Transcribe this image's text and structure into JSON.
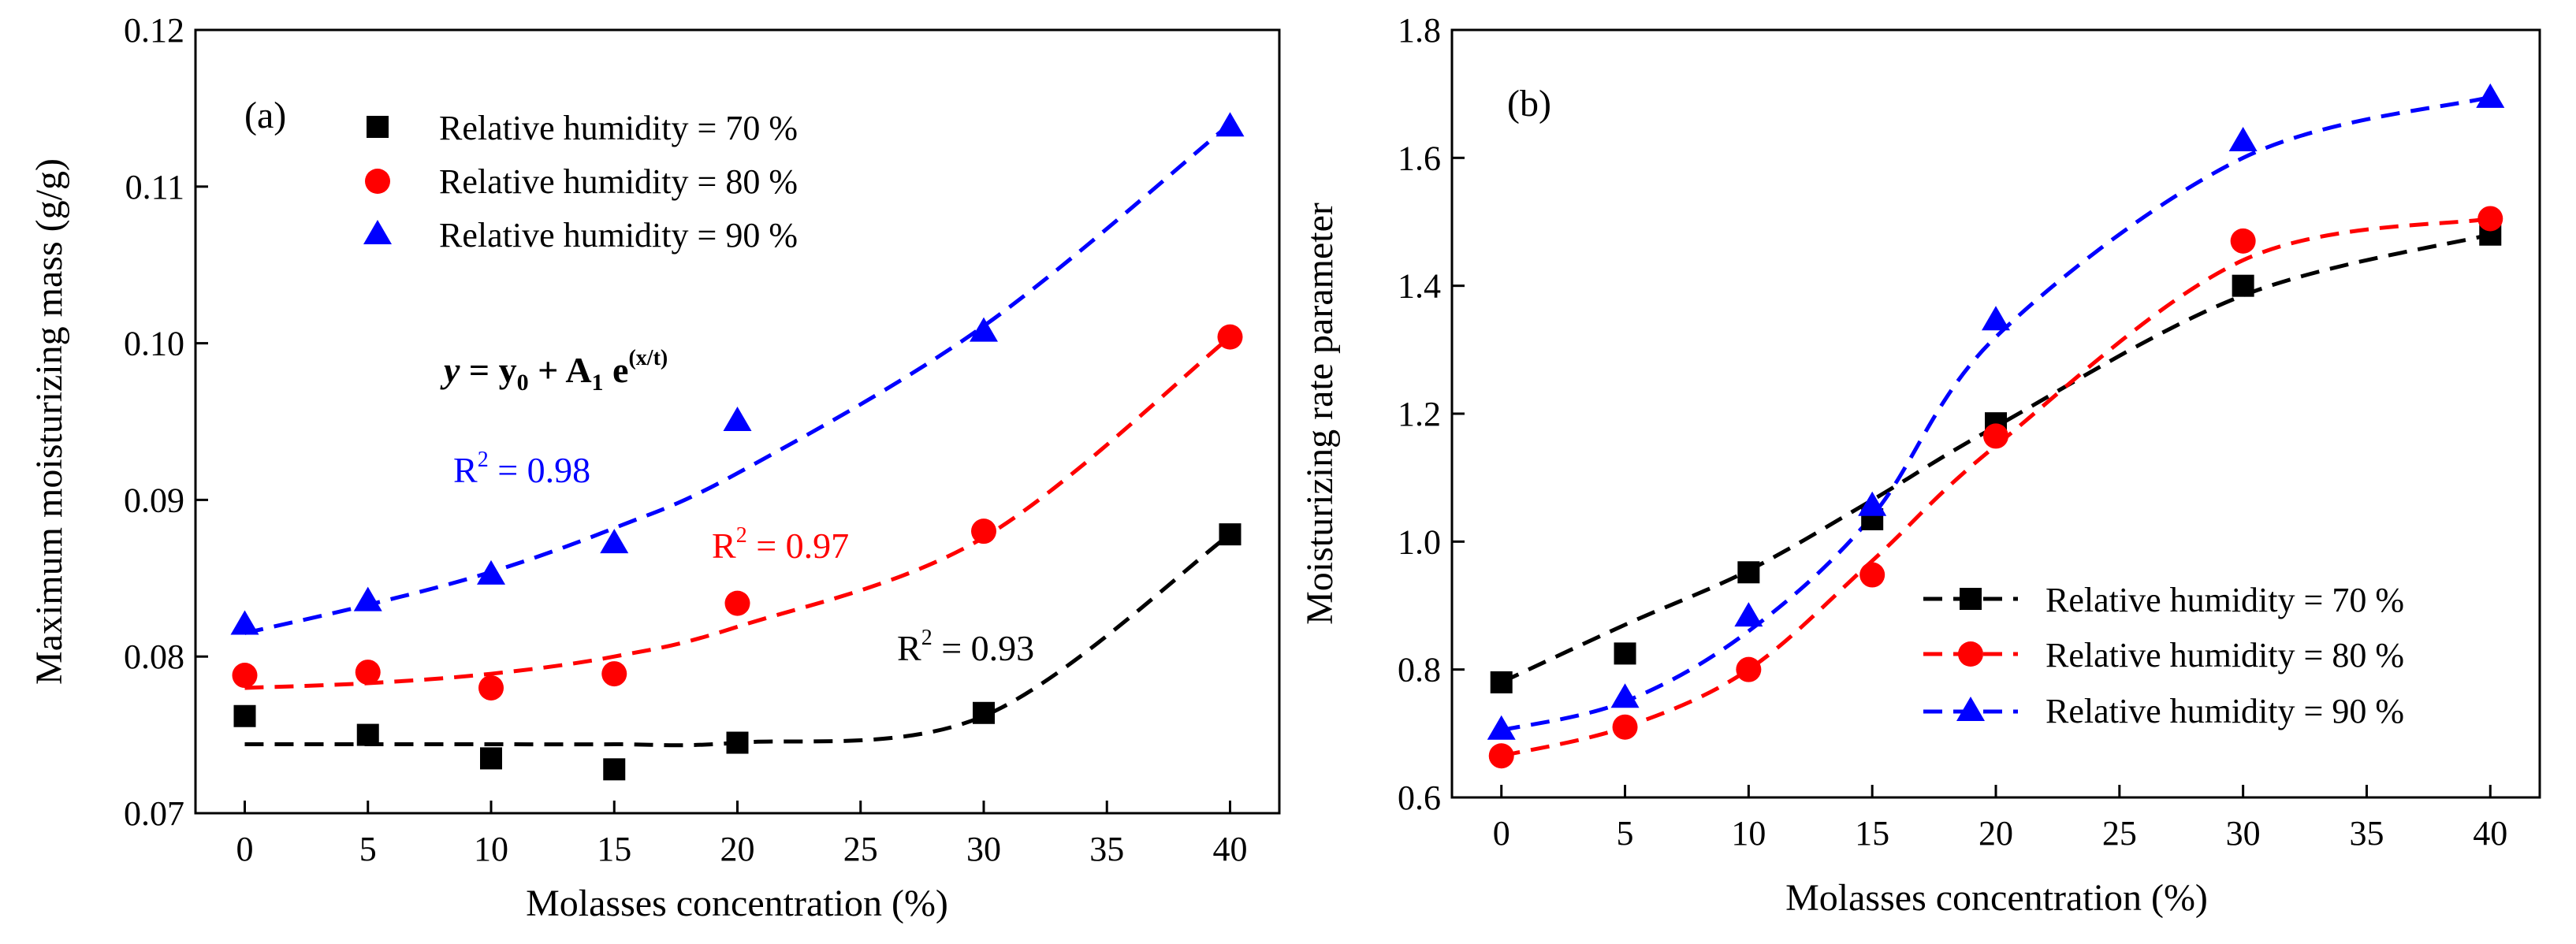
{
  "chart_data": [
    {
      "type": "scatter",
      "panel_label": "(a)",
      "xlabel": "Molasses concentration (%)",
      "ylabel": "Maximum moisturizing mass (g/g)",
      "xlim": [
        -2,
        42
      ],
      "ylim": [
        0.07,
        0.12
      ],
      "xticks": [
        "0",
        "5",
        "10",
        "15",
        "20",
        "25",
        "30",
        "35",
        "40"
      ],
      "yticks": [
        "0.07",
        "0.08",
        "0.09",
        "0.10",
        "0.11",
        "0.12"
      ],
      "x": [
        0,
        5,
        10,
        15,
        20,
        30,
        40
      ],
      "fit": "y = y0 + A1 e^(x/t)",
      "equation": {
        "lhs": "y",
        "eq": " = y",
        "sub0": "0",
        "plus": " + A",
        "sub1": "1",
        "e": " e",
        "exp": "(x/t)"
      },
      "series": [
        {
          "name": "Relative humidity = 70 %",
          "color": "#000000",
          "marker": "square",
          "values": [
            0.0762,
            0.075,
            0.0735,
            0.0728,
            0.0745,
            0.0764,
            0.0878
          ],
          "fit": [
            0.0744,
            0.0744,
            0.0744,
            0.0744,
            0.0745,
            0.0762,
            0.0878
          ],
          "r2": "0.93"
        },
        {
          "name": "Relative humidity = 80 %",
          "color": "#ff0000",
          "marker": "circle",
          "values": [
            0.0788,
            0.079,
            0.078,
            0.0789,
            0.0834,
            0.088,
            0.1004
          ],
          "fit": [
            0.078,
            0.0783,
            0.0789,
            0.08,
            0.0819,
            0.0876,
            0.1004
          ],
          "r2": "0.97"
        },
        {
          "name": "Relative humidity = 90 %",
          "color": "#0000ff",
          "marker": "triangle",
          "values": [
            0.082,
            0.0835,
            0.0852,
            0.0872,
            0.095,
            0.1007,
            0.1138
          ],
          "fit": [
            0.0815,
            0.0833,
            0.0854,
            0.0882,
            0.0917,
            0.1011,
            0.114
          ],
          "r2": "0.98"
        }
      ],
      "r2_label": "R",
      "r2_exp": "2"
    },
    {
      "type": "scatter",
      "panel_label": "(b)",
      "xlabel": "Molasses concentration (%)",
      "ylabel": "Moisturizing rate parameter",
      "xlim": [
        -2,
        42
      ],
      "ylim": [
        0.6,
        1.8
      ],
      "xticks": [
        "0",
        "5",
        "10",
        "15",
        "20",
        "25",
        "30",
        "35",
        "40"
      ],
      "yticks": [
        "0.6",
        "0.8",
        "1.0",
        "1.2",
        "1.4",
        "1.6",
        "1.8"
      ],
      "x": [
        0,
        5,
        10,
        15,
        20,
        30,
        40
      ],
      "series": [
        {
          "name": "Relative humidity = 70 %",
          "color": "#000000",
          "marker": "square",
          "values": [
            0.78,
            0.825,
            0.952,
            1.035,
            1.185,
            1.4,
            1.48
          ],
          "fit": [
            0.78,
            0.87,
            0.955,
            1.065,
            1.18,
            1.385,
            1.48
          ]
        },
        {
          "name": "Relative humidity = 80 %",
          "color": "#ff0000",
          "marker": "circle",
          "values": [
            0.665,
            0.71,
            0.8,
            0.948,
            1.165,
            1.47,
            1.505
          ],
          "fit": [
            0.665,
            0.71,
            0.8,
            0.97,
            1.15,
            1.44,
            1.505
          ]
        },
        {
          "name": "Relative humidity = 90 %",
          "color": "#0000ff",
          "marker": "triangle",
          "values": [
            0.705,
            0.755,
            0.882,
            1.055,
            1.345,
            1.625,
            1.693
          ],
          "fit": [
            0.705,
            0.75,
            0.86,
            1.04,
            1.32,
            1.6,
            1.695
          ]
        }
      ]
    }
  ]
}
